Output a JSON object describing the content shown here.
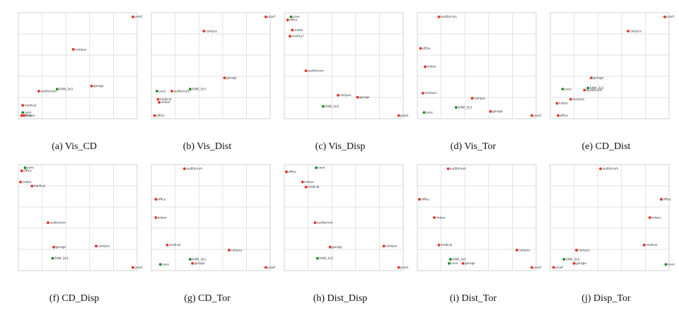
{
  "colors": {
    "red": "#e8302a",
    "green": "#1f8a2a"
  },
  "chart_data": [
    {
      "type": "scatter",
      "caption": "(a)  Vis_CD",
      "grid": true,
      "points": [
        {
          "label": "proof",
          "x": 0.98,
          "y": 0.98,
          "color": "red"
        },
        {
          "label": "campus",
          "x": 0.46,
          "y": 0.66,
          "color": "red"
        },
        {
          "label": "garage",
          "x": 0.62,
          "y": 0.3,
          "color": "red"
        },
        {
          "label": "AAW_3x3",
          "x": 0.32,
          "y": 0.27,
          "color": "green"
        },
        {
          "label": "auditorium",
          "x": 0.16,
          "y": 0.25,
          "color": "red"
        },
        {
          "label": "medical",
          "x": 0.02,
          "y": 0.11,
          "color": "red"
        },
        {
          "label": "cave",
          "x": 0.02,
          "y": 0.04,
          "color": "green"
        },
        {
          "label": "office",
          "x": 0.01,
          "y": 0.01,
          "color": "red"
        },
        {
          "label": "indoor",
          "x": 0.03,
          "y": 0.01,
          "color": "red"
        }
      ]
    },
    {
      "type": "scatter",
      "caption": "(b)  Vis_Dist",
      "grid": true,
      "points": [
        {
          "label": "proof",
          "x": 0.98,
          "y": 0.98,
          "color": "red"
        },
        {
          "label": "campus",
          "x": 0.44,
          "y": 0.84,
          "color": "red"
        },
        {
          "label": "garage",
          "x": 0.62,
          "y": 0.38,
          "color": "red"
        },
        {
          "label": "AAW_3x3",
          "x": 0.32,
          "y": 0.27,
          "color": "green"
        },
        {
          "label": "auditorium",
          "x": 0.16,
          "y": 0.25,
          "color": "red"
        },
        {
          "label": "cave",
          "x": 0.03,
          "y": 0.25,
          "color": "green"
        },
        {
          "label": "medical",
          "x": 0.04,
          "y": 0.17,
          "color": "red"
        },
        {
          "label": "indoor",
          "x": 0.05,
          "y": 0.14,
          "color": "red"
        },
        {
          "label": "office",
          "x": 0.01,
          "y": 0.01,
          "color": "red"
        }
      ]
    },
    {
      "type": "scatter",
      "caption": "(c)  Vis_Disp",
      "grid": true,
      "points": [
        {
          "label": "cave",
          "x": 0.04,
          "y": 0.98,
          "color": "green"
        },
        {
          "label": "office",
          "x": 0.01,
          "y": 0.95,
          "color": "red"
        },
        {
          "label": "indoor",
          "x": 0.05,
          "y": 0.85,
          "color": "red"
        },
        {
          "label": "medical",
          "x": 0.03,
          "y": 0.79,
          "color": "red"
        },
        {
          "label": "auditorium",
          "x": 0.17,
          "y": 0.45,
          "color": "red"
        },
        {
          "label": "campus",
          "x": 0.45,
          "y": 0.21,
          "color": "red"
        },
        {
          "label": "garage",
          "x": 0.62,
          "y": 0.19,
          "color": "red"
        },
        {
          "label": "AAW_3x3",
          "x": 0.32,
          "y": 0.1,
          "color": "green"
        },
        {
          "label": "proof",
          "x": 0.98,
          "y": 0.01,
          "color": "red"
        }
      ]
    },
    {
      "type": "scatter",
      "caption": "(d)  Vis_Tor",
      "grid": true,
      "points": [
        {
          "label": "auditorium",
          "x": 0.17,
          "y": 0.98,
          "color": "red"
        },
        {
          "label": "office",
          "x": 0.01,
          "y": 0.67,
          "color": "red"
        },
        {
          "label": "indoor",
          "x": 0.05,
          "y": 0.49,
          "color": "red"
        },
        {
          "label": "medical",
          "x": 0.03,
          "y": 0.23,
          "color": "red"
        },
        {
          "label": "campus",
          "x": 0.46,
          "y": 0.18,
          "color": "red"
        },
        {
          "label": "AAW_3x3",
          "x": 0.32,
          "y": 0.09,
          "color": "green"
        },
        {
          "label": "garage",
          "x": 0.62,
          "y": 0.05,
          "color": "red"
        },
        {
          "label": "cave",
          "x": 0.04,
          "y": 0.04,
          "color": "green"
        },
        {
          "label": "proof",
          "x": 0.98,
          "y": 0.01,
          "color": "red"
        }
      ]
    },
    {
      "type": "scatter",
      "caption": "(e)  CD_Dist",
      "grid": true,
      "points": [
        {
          "label": "proof",
          "x": 0.98,
          "y": 0.98,
          "color": "red"
        },
        {
          "label": "campus",
          "x": 0.66,
          "y": 0.84,
          "color": "red"
        },
        {
          "label": "garage",
          "x": 0.34,
          "y": 0.38,
          "color": "red"
        },
        {
          "label": "AAW_3x3",
          "x": 0.31,
          "y": 0.28,
          "color": "green"
        },
        {
          "label": "auditorium",
          "x": 0.28,
          "y": 0.26,
          "color": "red"
        },
        {
          "label": "cave",
          "x": 0.09,
          "y": 0.27,
          "color": "green"
        },
        {
          "label": "medical",
          "x": 0.16,
          "y": 0.17,
          "color": "red"
        },
        {
          "label": "indoor",
          "x": 0.04,
          "y": 0.13,
          "color": "red"
        },
        {
          "label": "office",
          "x": 0.05,
          "y": 0.01,
          "color": "red"
        }
      ]
    },
    {
      "type": "scatter",
      "caption": "(f)  CD_Disp",
      "grid": true,
      "points": [
        {
          "label": "cave",
          "x": 0.04,
          "y": 0.99,
          "color": "green"
        },
        {
          "label": "office",
          "x": 0.01,
          "y": 0.96,
          "color": "red"
        },
        {
          "label": "indoor",
          "x": 0.0,
          "y": 0.85,
          "color": "red"
        },
        {
          "label": "medical",
          "x": 0.1,
          "y": 0.81,
          "color": "red"
        },
        {
          "label": "auditorium",
          "x": 0.24,
          "y": 0.45,
          "color": "red"
        },
        {
          "label": "garage",
          "x": 0.29,
          "y": 0.21,
          "color": "red"
        },
        {
          "label": "campus",
          "x": 0.66,
          "y": 0.22,
          "color": "red"
        },
        {
          "label": "AAW_3x3",
          "x": 0.28,
          "y": 0.1,
          "color": "green"
        },
        {
          "label": "proof",
          "x": 0.98,
          "y": 0.01,
          "color": "red"
        }
      ]
    },
    {
      "type": "scatter",
      "caption": "(g)  CD_Tor",
      "grid": true,
      "points": [
        {
          "label": "auditorium",
          "x": 0.27,
          "y": 0.98,
          "color": "red"
        },
        {
          "label": "office",
          "x": 0.02,
          "y": 0.68,
          "color": "red"
        },
        {
          "label": "indoor",
          "x": 0.02,
          "y": 0.5,
          "color": "red"
        },
        {
          "label": "medical",
          "x": 0.12,
          "y": 0.23,
          "color": "red"
        },
        {
          "label": "campus",
          "x": 0.66,
          "y": 0.18,
          "color": "red"
        },
        {
          "label": "AAW_3x3",
          "x": 0.32,
          "y": 0.09,
          "color": "green"
        },
        {
          "label": "garage",
          "x": 0.34,
          "y": 0.05,
          "color": "red"
        },
        {
          "label": "cave",
          "x": 0.06,
          "y": 0.04,
          "color": "green"
        },
        {
          "label": "proof",
          "x": 0.98,
          "y": 0.01,
          "color": "red"
        }
      ]
    },
    {
      "type": "scatter",
      "caption": "(h)  Dist_Disp",
      "grid": true,
      "points": [
        {
          "label": "cave",
          "x": 0.26,
          "y": 0.99,
          "color": "green"
        },
        {
          "label": "office",
          "x": 0.0,
          "y": 0.95,
          "color": "red"
        },
        {
          "label": "indoor",
          "x": 0.14,
          "y": 0.85,
          "color": "red"
        },
        {
          "label": "medical",
          "x": 0.17,
          "y": 0.8,
          "color": "red"
        },
        {
          "label": "auditorium",
          "x": 0.25,
          "y": 0.45,
          "color": "red"
        },
        {
          "label": "garage",
          "x": 0.38,
          "y": 0.21,
          "color": "red"
        },
        {
          "label": "campus",
          "x": 0.85,
          "y": 0.22,
          "color": "red"
        },
        {
          "label": "AAW_3x3",
          "x": 0.27,
          "y": 0.1,
          "color": "green"
        },
        {
          "label": "proof",
          "x": 0.98,
          "y": 0.01,
          "color": "red"
        }
      ]
    },
    {
      "type": "scatter",
      "caption": "(i)  Dist_Tor",
      "grid": true,
      "points": [
        {
          "label": "auditorium",
          "x": 0.25,
          "y": 0.98,
          "color": "red"
        },
        {
          "label": "office",
          "x": 0.0,
          "y": 0.68,
          "color": "red"
        },
        {
          "label": "indoor",
          "x": 0.13,
          "y": 0.5,
          "color": "red"
        },
        {
          "label": "medical",
          "x": 0.17,
          "y": 0.23,
          "color": "red"
        },
        {
          "label": "campus",
          "x": 0.85,
          "y": 0.18,
          "color": "red"
        },
        {
          "label": "AAW_3x3",
          "x": 0.27,
          "y": 0.09,
          "color": "green"
        },
        {
          "label": "garage",
          "x": 0.38,
          "y": 0.05,
          "color": "red"
        },
        {
          "label": "cave",
          "x": 0.26,
          "y": 0.05,
          "color": "green"
        },
        {
          "label": "proof",
          "x": 0.98,
          "y": 0.01,
          "color": "red"
        }
      ]
    },
    {
      "type": "scatter",
      "caption": "(j)  Disp_Tor",
      "grid": true,
      "points": [
        {
          "label": "auditorium",
          "x": 0.42,
          "y": 0.98,
          "color": "red"
        },
        {
          "label": "office",
          "x": 0.95,
          "y": 0.68,
          "color": "red"
        },
        {
          "label": "indoor",
          "x": 0.85,
          "y": 0.5,
          "color": "red"
        },
        {
          "label": "medical",
          "x": 0.8,
          "y": 0.23,
          "color": "red"
        },
        {
          "label": "campus",
          "x": 0.21,
          "y": 0.18,
          "color": "red"
        },
        {
          "label": "AAW_3x3",
          "x": 0.1,
          "y": 0.09,
          "color": "green"
        },
        {
          "label": "garage",
          "x": 0.19,
          "y": 0.05,
          "color": "red"
        },
        {
          "label": "proof",
          "x": 0.01,
          "y": 0.01,
          "color": "red"
        },
        {
          "label": "cave",
          "x": 0.99,
          "y": 0.04,
          "color": "green"
        }
      ]
    }
  ]
}
